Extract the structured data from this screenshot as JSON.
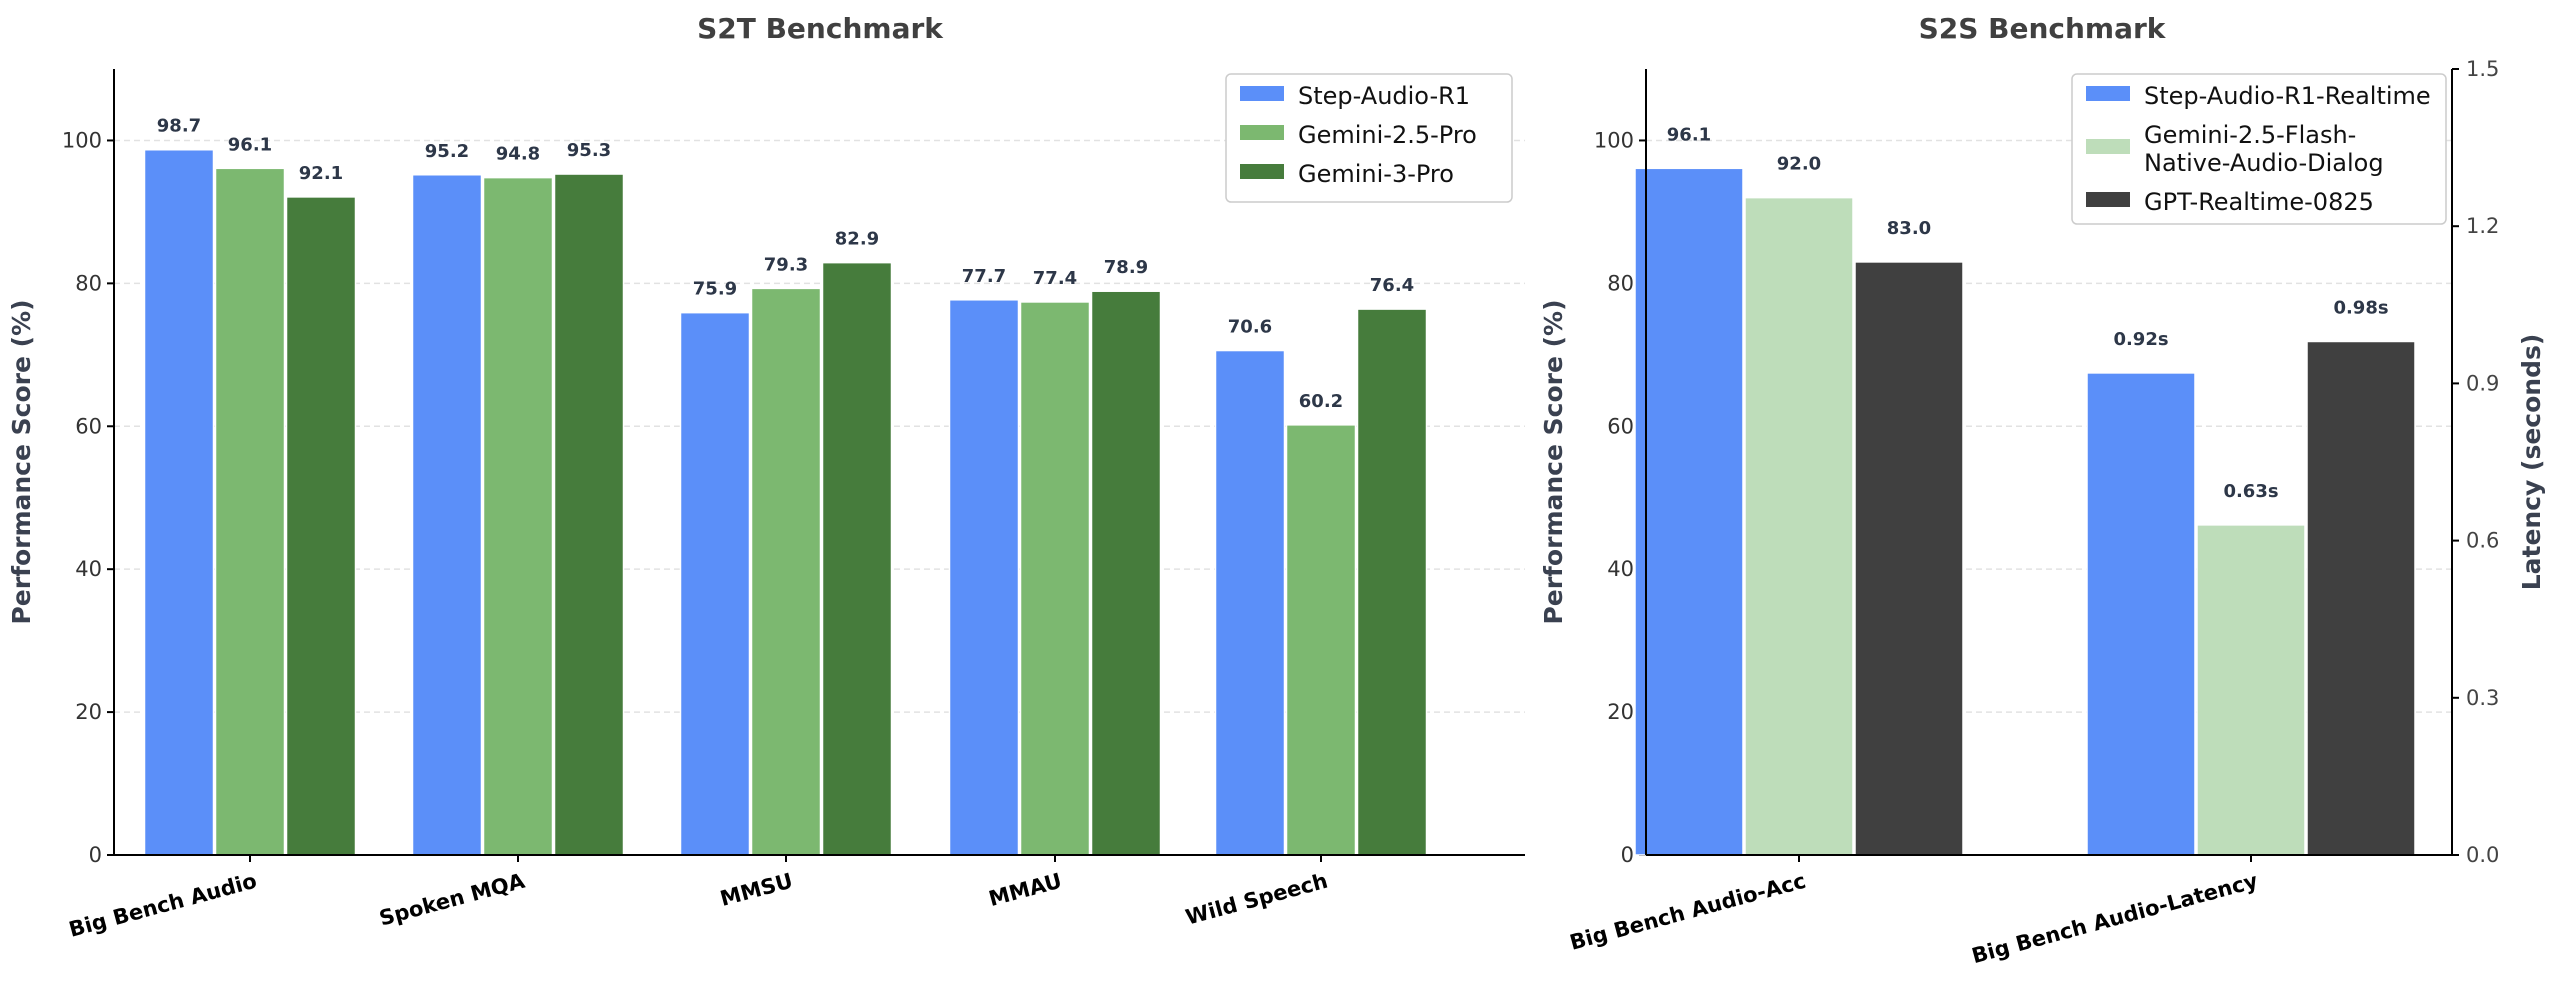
{
  "chart_data": [
    {
      "type": "bar",
      "title": "S2T Benchmark",
      "ylabel": "Performance Score (%)",
      "ylim": [
        0,
        110
      ],
      "yticks": [
        0,
        20,
        40,
        60,
        80,
        100
      ],
      "grid": true,
      "legend_position": "top-right",
      "categories": [
        "Big Bench Audio",
        "Spoken MQA",
        "MMSU",
        "MMAU",
        "Wild Speech"
      ],
      "series": [
        {
          "name": "Step-Audio-R1",
          "color": "#5B8FF9",
          "values": [
            98.7,
            95.2,
            75.9,
            77.7,
            70.6
          ],
          "labels": [
            "98.7",
            "95.2",
            "75.9",
            "77.7",
            "70.6"
          ]
        },
        {
          "name": "Gemini-2.5-Pro",
          "color": "#7CB870",
          "values": [
            96.1,
            94.8,
            79.3,
            77.4,
            60.2
          ],
          "labels": [
            "96.1",
            "94.8",
            "79.3",
            "77.4",
            "60.2"
          ]
        },
        {
          "name": "Gemini-3-Pro",
          "color": "#467C3C",
          "values": [
            92.1,
            95.3,
            82.9,
            78.9,
            76.4
          ],
          "labels": [
            "92.1",
            "95.3",
            "82.9",
            "78.9",
            "76.4"
          ]
        }
      ]
    },
    {
      "type": "bar",
      "title": "S2S Benchmark",
      "ylabel": "Performance Score (%)",
      "ylim": [
        0,
        110
      ],
      "yticks": [
        0,
        20,
        40,
        60,
        80,
        100
      ],
      "y2label": "Latency (seconds)",
      "y2lim": [
        0,
        1.5
      ],
      "y2ticks": [
        "0.0",
        "0.3",
        "0.6",
        "0.9",
        "1.2",
        "1.5"
      ],
      "grid": true,
      "legend_position": "top-right",
      "categories": [
        "Big Bench Audio-Acc",
        "Big Bench Audio-Latency"
      ],
      "category_axes": [
        "left",
        "right"
      ],
      "series": [
        {
          "name": "Step-Audio-R1-Realtime",
          "name_lines": [
            "Step-Audio-R1-Realtime"
          ],
          "color": "#5B8FF9",
          "values": [
            96.1,
            0.92
          ],
          "labels": [
            "96.1",
            "0.92s"
          ]
        },
        {
          "name": "Gemini-2.5-Flash-Native-Audio-Dialog",
          "name_lines": [
            "Gemini-2.5-Flash-",
            "Native-Audio-Dialog"
          ],
          "color": "#BEDDBA",
          "values": [
            92.0,
            0.63
          ],
          "labels": [
            "92.0",
            "0.63s"
          ]
        },
        {
          "name": "GPT-Realtime-0825",
          "name_lines": [
            "GPT-Realtime-0825"
          ],
          "color": "#404040",
          "values": [
            83.0,
            0.98
          ],
          "labels": [
            "83.0",
            "0.98s"
          ]
        }
      ]
    }
  ]
}
